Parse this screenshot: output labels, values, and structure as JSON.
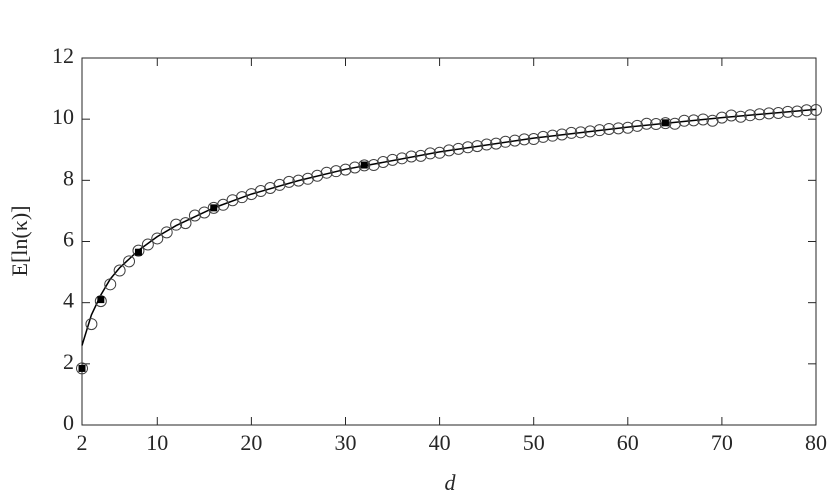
{
  "chart_data": {
    "type": "line",
    "xlabel": "d",
    "ylabel": "E[ln(κ)]",
    "xlim": [
      2,
      80
    ],
    "ylim": [
      0,
      12
    ],
    "xticks": [
      2,
      10,
      20,
      30,
      40,
      50,
      60,
      70,
      80
    ],
    "yticks": [
      0,
      2,
      4,
      6,
      8,
      10,
      12
    ],
    "grid": false,
    "series": [
      {
        "style": "line",
        "color": "#000000",
        "x": [
          2,
          3,
          4,
          5,
          6,
          8,
          10,
          12,
          16,
          20,
          25,
          30,
          40,
          50,
          60,
          70,
          80
        ],
        "values": [
          2.6,
          3.6,
          4.25,
          4.77,
          5.14,
          5.71,
          6.16,
          6.52,
          7.1,
          7.55,
          7.99,
          8.36,
          8.93,
          9.38,
          9.74,
          10.05,
          10.32
        ]
      },
      {
        "style": "circle",
        "color": "#404040",
        "x": [
          2,
          3,
          4,
          5,
          6,
          7,
          8,
          9,
          10,
          11,
          12,
          13,
          14,
          15,
          16,
          17,
          18,
          19,
          20,
          21,
          22,
          23,
          24,
          25,
          26,
          27,
          28,
          29,
          30,
          31,
          32,
          33,
          34,
          35,
          36,
          37,
          38,
          39,
          40,
          41,
          42,
          43,
          44,
          45,
          46,
          47,
          48,
          49,
          50,
          51,
          52,
          53,
          54,
          55,
          56,
          57,
          58,
          59,
          60,
          61,
          62,
          63,
          64,
          65,
          66,
          67,
          68,
          69,
          70,
          71,
          72,
          73,
          74,
          75,
          76,
          77,
          78,
          79,
          80
        ],
        "values": [
          1.85,
          3.3,
          4.05,
          4.6,
          5.05,
          5.35,
          5.7,
          5.9,
          6.1,
          6.3,
          6.55,
          6.6,
          6.85,
          6.95,
          7.1,
          7.2,
          7.35,
          7.45,
          7.55,
          7.65,
          7.75,
          7.85,
          7.95,
          7.99,
          8.05,
          8.15,
          8.25,
          8.3,
          8.35,
          8.42,
          8.49,
          8.5,
          8.6,
          8.67,
          8.72,
          8.78,
          8.8,
          8.88,
          8.9,
          8.98,
          9.03,
          9.08,
          9.12,
          9.17,
          9.2,
          9.26,
          9.3,
          9.34,
          9.35,
          9.42,
          9.46,
          9.5,
          9.55,
          9.57,
          9.6,
          9.64,
          9.68,
          9.7,
          9.72,
          9.78,
          9.85,
          9.84,
          9.87,
          9.85,
          9.95,
          9.96,
          9.99,
          9.95,
          10.05,
          10.12,
          10.08,
          10.13,
          10.16,
          10.19,
          10.2,
          10.24,
          10.25,
          10.29,
          10.3
        ]
      },
      {
        "style": "square",
        "color": "#000000",
        "x": [
          2,
          4,
          8,
          16,
          32,
          64
        ],
        "values": [
          1.85,
          4.1,
          5.65,
          7.1,
          8.5,
          9.88
        ]
      }
    ]
  }
}
